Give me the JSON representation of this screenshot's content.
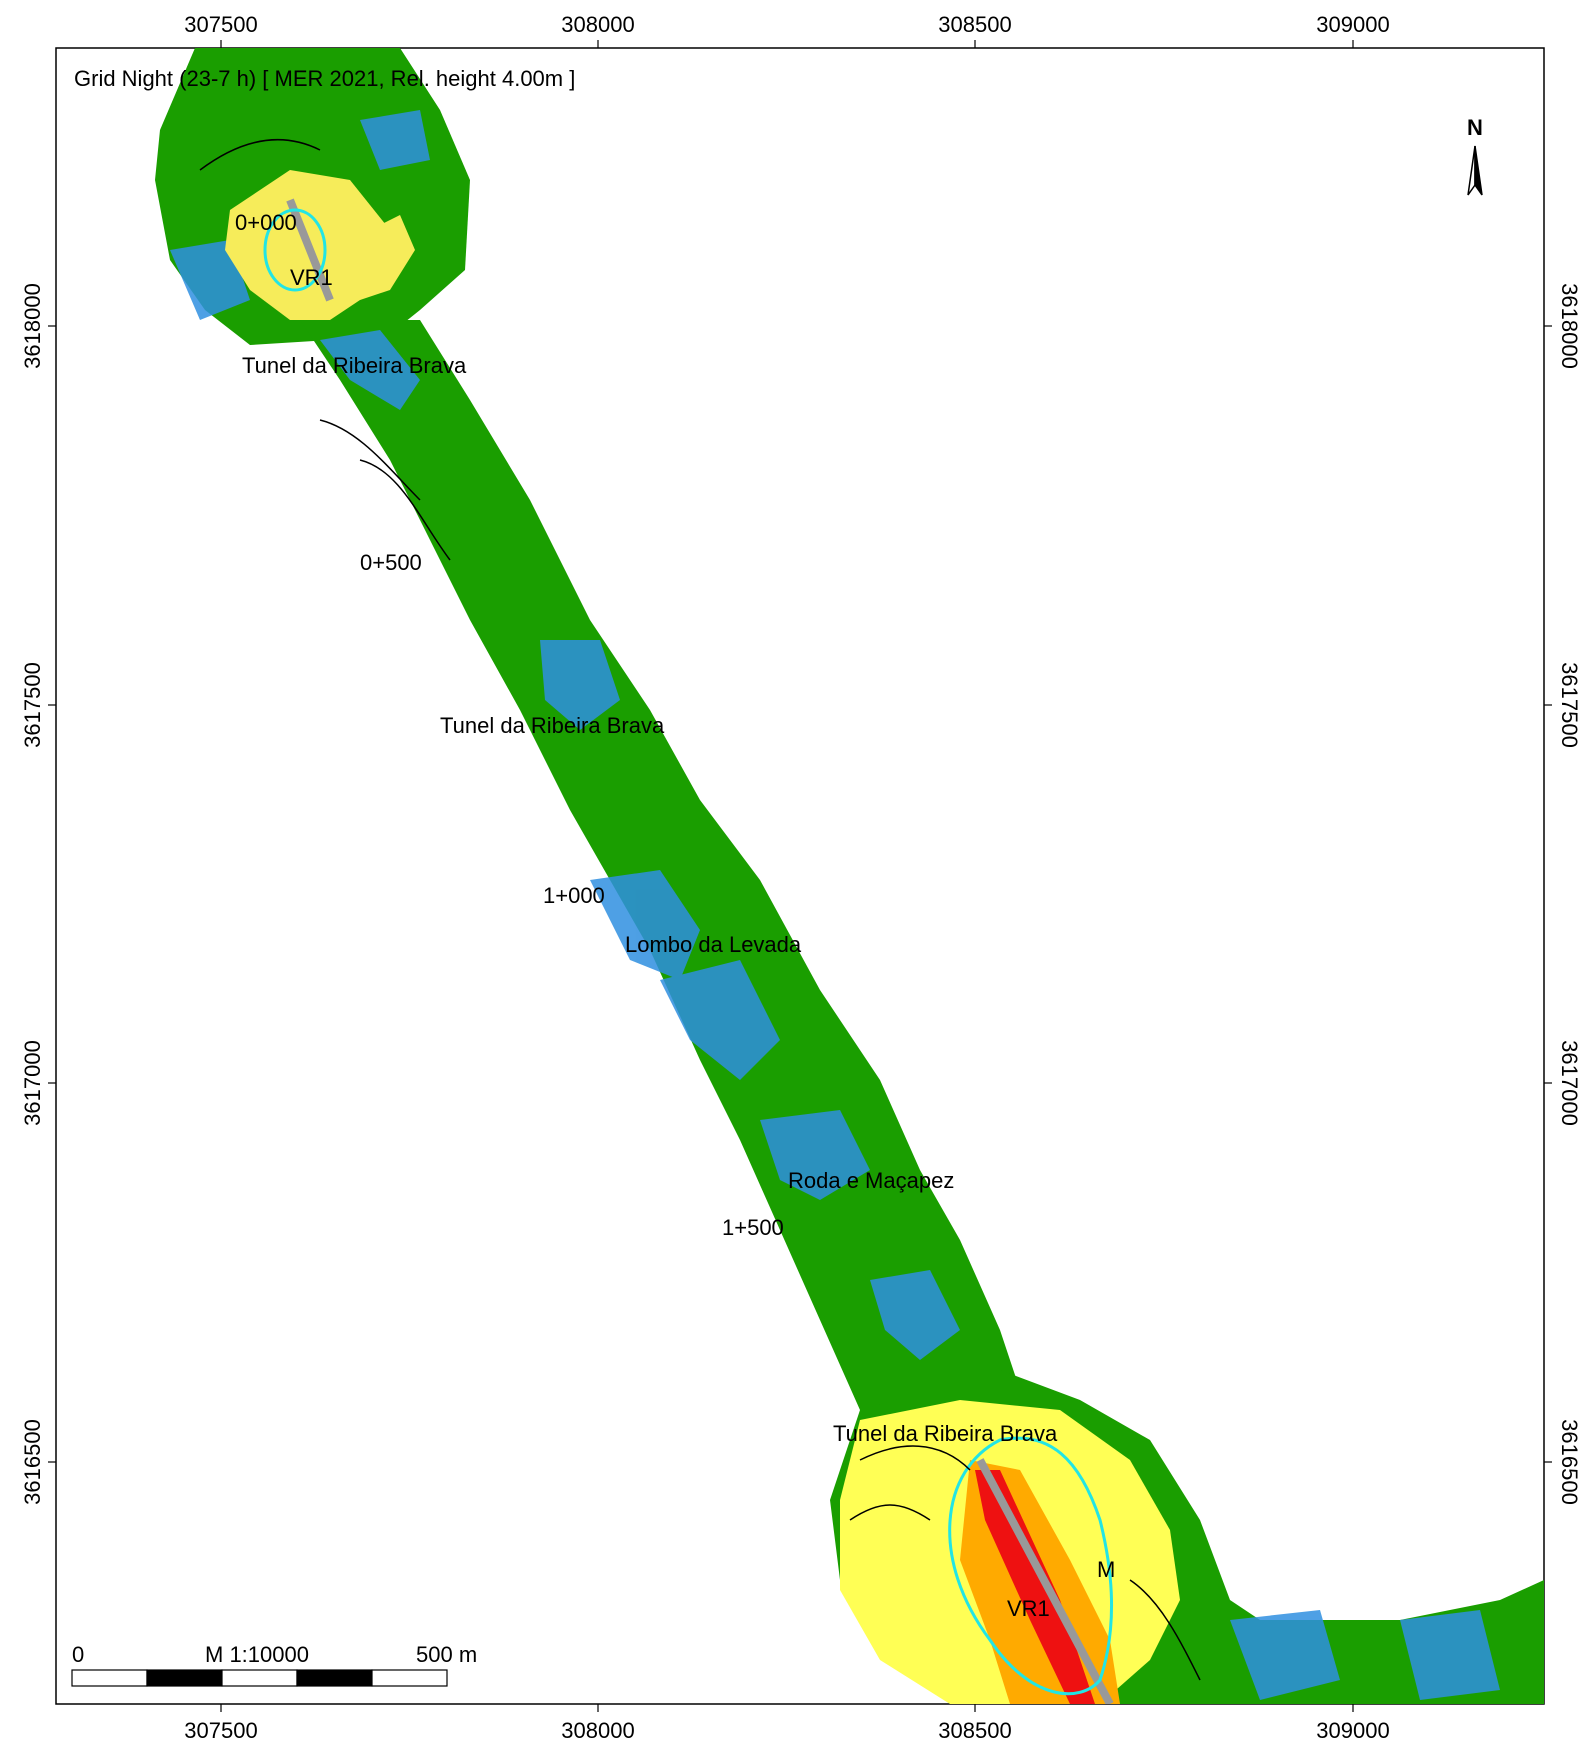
{
  "map": {
    "title": "Grid Night (23-7 h)  [ MER 2021, Rel. height  4.00m ]",
    "north_label": "N",
    "scale": {
      "start": "0",
      "ratio": "M 1:10000",
      "end": "500 m"
    },
    "x_ticks": [
      "307500",
      "308000",
      "308500",
      "309000"
    ],
    "y_ticks_left": [
      "3618000",
      "3617500",
      "3617000",
      "3616500"
    ],
    "y_ticks_right": [
      "3618000",
      "3617500",
      "3617000",
      "3616500"
    ],
    "place_labels": [
      "0+000",
      "VR1",
      "Tunel da Ribeira Brava",
      "0+500",
      "Tunel da Ribeira Brava",
      "1+000",
      "Lombo da Levada",
      "Roda e Maçapez",
      "1+500",
      "Tunel da Ribeira Brava",
      "VR1",
      "M"
    ],
    "colors": {
      "low_green": "#1a9e00",
      "blue_zone": "#2f8fe0",
      "yellow": "#ffff55",
      "light_yellow": "#f6ec5a",
      "orange": "#ffaa00",
      "red": "#ee1111",
      "cyan_contour": "#22e5e5",
      "road": "#999999"
    }
  }
}
